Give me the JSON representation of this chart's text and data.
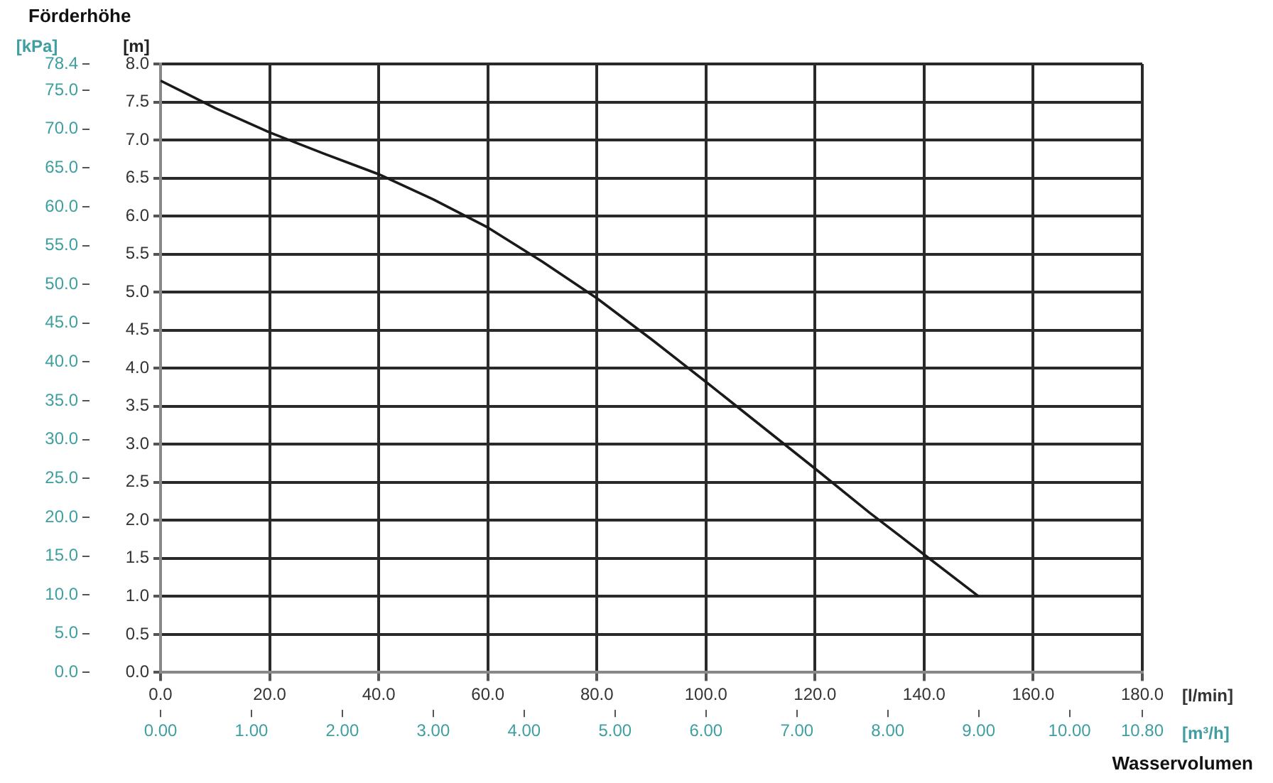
{
  "chart_data": {
    "type": "line",
    "xlabel": "[l/min]",
    "x2label": "[m³/h]",
    "ylabel": "[m]",
    "y2label": "[kPa]",
    "annotations": [
      "Förderhöhe",
      "Wasservolumen"
    ],
    "x": [
      0,
      10,
      20,
      30,
      40,
      50,
      60,
      70,
      80,
      90,
      100,
      110,
      120,
      130,
      140,
      150
    ],
    "series": [
      {
        "color": "#1a1a1a",
        "values": [
          7.78,
          7.42,
          7.1,
          6.82,
          6.55,
          6.22,
          5.85,
          5.4,
          4.92,
          4.38,
          3.82,
          3.25,
          2.68,
          2.1,
          1.55,
          1.0
        ]
      }
    ],
    "xlim": [
      0,
      180
    ],
    "xticks": [
      {
        "value": 0,
        "label": "0.0"
      },
      {
        "value": 20,
        "label": "20.0"
      },
      {
        "value": 40,
        "label": "40.0"
      },
      {
        "value": 60,
        "label": "60.0"
      },
      {
        "value": 80,
        "label": "80.0"
      },
      {
        "value": 100,
        "label": "100.0"
      },
      {
        "value": 120,
        "label": "120.0"
      },
      {
        "value": 140,
        "label": "140.0"
      },
      {
        "value": 160,
        "label": "160.0"
      },
      {
        "value": 180,
        "label": "180.0"
      }
    ],
    "x2lim": [
      0,
      10.8
    ],
    "x2ticks": [
      {
        "value": 0,
        "label": "0.00"
      },
      {
        "value": 1,
        "label": "1.00"
      },
      {
        "value": 2,
        "label": "2.00"
      },
      {
        "value": 3,
        "label": "3.00"
      },
      {
        "value": 4,
        "label": "4.00"
      },
      {
        "value": 5,
        "label": "5.00"
      },
      {
        "value": 6,
        "label": "6.00"
      },
      {
        "value": 7,
        "label": "7.00"
      },
      {
        "value": 8,
        "label": "8.00"
      },
      {
        "value": 9,
        "label": "9.00"
      },
      {
        "value": 10,
        "label": "10.00"
      },
      {
        "value": 10.8,
        "label": "10.80"
      }
    ],
    "ylim": [
      0,
      8
    ],
    "yticks": [
      {
        "value": 0,
        "label": "0.0"
      },
      {
        "value": 0.5,
        "label": "0.5"
      },
      {
        "value": 1,
        "label": "1.0"
      },
      {
        "value": 1.5,
        "label": "1.5"
      },
      {
        "value": 2,
        "label": "2.0"
      },
      {
        "value": 2.5,
        "label": "2.5"
      },
      {
        "value": 3,
        "label": "3.0"
      },
      {
        "value": 3.5,
        "label": "3.5"
      },
      {
        "value": 4,
        "label": "4.0"
      },
      {
        "value": 4.5,
        "label": "4.5"
      },
      {
        "value": 5,
        "label": "5.0"
      },
      {
        "value": 5.5,
        "label": "5.5"
      },
      {
        "value": 6,
        "label": "6.0"
      },
      {
        "value": 6.5,
        "label": "6.5"
      },
      {
        "value": 7,
        "label": "7.0"
      },
      {
        "value": 7.5,
        "label": "7.5"
      },
      {
        "value": 8,
        "label": "8.0"
      }
    ],
    "y2lim": [
      0,
      78.4
    ],
    "y2ticks": [
      {
        "value": 0,
        "label": "0.0"
      },
      {
        "value": 5,
        "label": "5.0"
      },
      {
        "value": 10,
        "label": "10.0"
      },
      {
        "value": 15,
        "label": "15.0"
      },
      {
        "value": 20,
        "label": "20.0"
      },
      {
        "value": 25,
        "label": "25.0"
      },
      {
        "value": 30,
        "label": "30.0"
      },
      {
        "value": 35,
        "label": "35.0"
      },
      {
        "value": 40,
        "label": "40.0"
      },
      {
        "value": 45,
        "label": "45.0"
      },
      {
        "value": 50,
        "label": "50.0"
      },
      {
        "value": 55,
        "label": "55.0"
      },
      {
        "value": 60,
        "label": "60.0"
      },
      {
        "value": 65,
        "label": "65.0"
      },
      {
        "value": 70,
        "label": "70.0"
      },
      {
        "value": 75,
        "label": "75.0"
      },
      {
        "value": 78.4,
        "label": "78.4"
      }
    ],
    "grid": true,
    "legend": false,
    "marker": "none",
    "line_style": "solid"
  }
}
